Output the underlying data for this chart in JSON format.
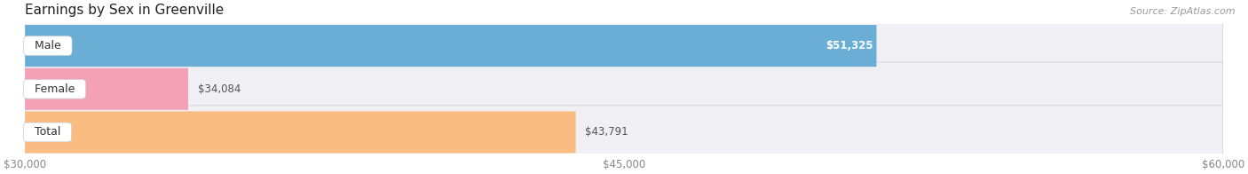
{
  "title": "Earnings by Sex in Greenville",
  "source": "Source: ZipAtlas.com",
  "categories": [
    "Male",
    "Female",
    "Total"
  ],
  "values": [
    51325,
    34084,
    43791
  ],
  "bar_colors": [
    "#6aaed6",
    "#f4a0b5",
    "#fbbc82"
  ],
  "value_label_colors": [
    "white",
    "#666666",
    "#666666"
  ],
  "label_inside": [
    true,
    false,
    false
  ],
  "xlim_min": 30000,
  "xlim_max": 60000,
  "xticks": [
    30000,
    45000,
    60000
  ],
  "xtick_labels": [
    "$30,000",
    "$45,000",
    "$60,000"
  ],
  "background_color": "#ffffff",
  "track_color": "#f0f0f4",
  "track_border_color": "#d8d8e0",
  "bar_height": 0.62,
  "figsize": [
    14.06,
    1.96
  ],
  "dpi": 100
}
